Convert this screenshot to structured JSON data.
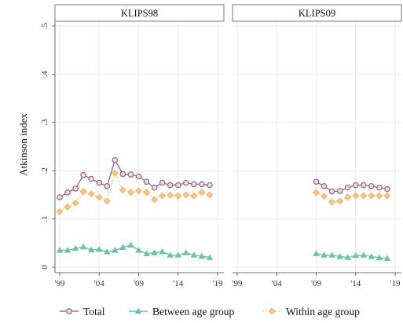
{
  "chart_data": {
    "type": "line",
    "ylabel": "Atkinson index",
    "ylim": [
      0,
      0.5
    ],
    "yticks": [
      0,
      0.1,
      0.2,
      0.3,
      0.4,
      0.5
    ],
    "ytick_labels": [
      "0",
      ".1",
      ".2",
      ".3",
      ".4",
      ".5"
    ],
    "xlim": [
      1999,
      2019
    ],
    "xticks": [
      1999,
      2004,
      2009,
      2014,
      2019
    ],
    "xtick_labels": [
      "'99",
      "'04",
      "'09",
      "'14",
      "'19"
    ],
    "grid": true,
    "legend_position": "bottom",
    "series_styles": [
      {
        "name": "Total",
        "color": "#9b6f86",
        "marker": "circle",
        "dashed": false
      },
      {
        "name": "Between age group",
        "color": "#6cc3a5",
        "marker": "triangle",
        "dashed": false
      },
      {
        "name": "Within age group",
        "color": "#f5c587",
        "marker": "diamond",
        "dashed": true
      }
    ],
    "panels": [
      {
        "title": "KLIPS98",
        "x": [
          1999,
          2000,
          2001,
          2002,
          2003,
          2004,
          2005,
          2006,
          2007,
          2008,
          2009,
          2010,
          2011,
          2012,
          2013,
          2014,
          2015,
          2016,
          2017,
          2018
        ],
        "series": [
          {
            "name": "Total",
            "values": [
              0.145,
              0.155,
              0.163,
              0.191,
              0.183,
              0.175,
              0.168,
              0.222,
              0.193,
              0.192,
              0.188,
              0.177,
              0.165,
              0.175,
              0.17,
              0.17,
              0.175,
              0.172,
              0.172,
              0.17
            ]
          },
          {
            "name": "Between age group",
            "values": [
              0.035,
              0.035,
              0.039,
              0.042,
              0.036,
              0.037,
              0.032,
              0.035,
              0.041,
              0.046,
              0.035,
              0.028,
              0.03,
              0.032,
              0.025,
              0.025,
              0.03,
              0.025,
              0.023,
              0.02
            ]
          },
          {
            "name": "Within age group",
            "values": [
              0.115,
              0.125,
              0.133,
              0.157,
              0.152,
              0.145,
              0.137,
              0.195,
              0.16,
              0.155,
              0.158,
              0.155,
              0.14,
              0.148,
              0.149,
              0.148,
              0.15,
              0.148,
              0.155,
              0.15
            ]
          }
        ]
      },
      {
        "title": "KLIPS09",
        "x": [
          2009,
          2010,
          2011,
          2012,
          2013,
          2014,
          2015,
          2016,
          2017,
          2018
        ],
        "series": [
          {
            "name": "Total",
            "values": [
              0.177,
              0.168,
              0.157,
              0.158,
              0.165,
              0.17,
              0.17,
              0.168,
              0.165,
              0.162
            ]
          },
          {
            "name": "Between age group",
            "values": [
              0.028,
              0.025,
              0.025,
              0.022,
              0.02,
              0.024,
              0.025,
              0.022,
              0.02,
              0.018
            ]
          },
          {
            "name": "Within age group",
            "values": [
              0.155,
              0.147,
              0.135,
              0.137,
              0.145,
              0.148,
              0.148,
              0.148,
              0.148,
              0.148
            ]
          }
        ]
      }
    ]
  }
}
